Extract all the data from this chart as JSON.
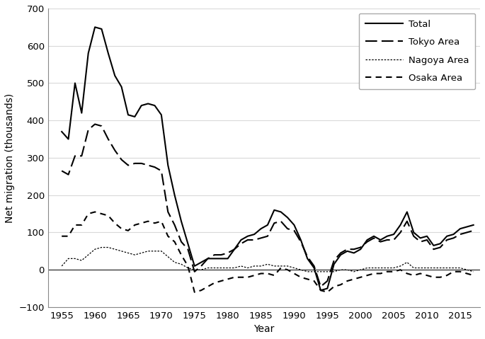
{
  "title": "",
  "xlabel": "Year",
  "ylabel": "Net migration (thousands)",
  "xlim": [
    1953,
    2018
  ],
  "ylim": [
    -100,
    700
  ],
  "yticks": [
    -100,
    0,
    100,
    200,
    300,
    400,
    500,
    600,
    700
  ],
  "xticks": [
    1955,
    1960,
    1965,
    1970,
    1975,
    1980,
    1985,
    1990,
    1995,
    2000,
    2005,
    2010,
    2015
  ],
  "years": [
    1955,
    1956,
    1957,
    1958,
    1959,
    1960,
    1961,
    1962,
    1963,
    1964,
    1965,
    1966,
    1967,
    1968,
    1969,
    1970,
    1971,
    1972,
    1973,
    1974,
    1975,
    1976,
    1977,
    1978,
    1979,
    1980,
    1981,
    1982,
    1983,
    1984,
    1985,
    1986,
    1987,
    1988,
    1989,
    1990,
    1991,
    1992,
    1993,
    1994,
    1995,
    1996,
    1997,
    1998,
    1999,
    2000,
    2001,
    2002,
    2003,
    2004,
    2005,
    2006,
    2007,
    2008,
    2009,
    2010,
    2011,
    2012,
    2013,
    2014,
    2015,
    2016,
    2017
  ],
  "total": [
    370,
    350,
    500,
    420,
    580,
    650,
    645,
    580,
    520,
    490,
    415,
    410,
    440,
    445,
    440,
    415,
    280,
    200,
    130,
    70,
    10,
    20,
    30,
    30,
    30,
    30,
    55,
    80,
    90,
    95,
    110,
    120,
    160,
    155,
    140,
    120,
    80,
    30,
    5,
    -55,
    -50,
    15,
    40,
    50,
    45,
    55,
    80,
    90,
    80,
    90,
    95,
    120,
    155,
    100,
    85,
    90,
    65,
    70,
    90,
    95,
    110,
    115,
    120
  ],
  "tokyo": [
    265,
    255,
    305,
    305,
    375,
    390,
    385,
    350,
    320,
    295,
    280,
    285,
    285,
    280,
    275,
    265,
    155,
    120,
    75,
    55,
    -5,
    10,
    30,
    40,
    40,
    45,
    55,
    70,
    80,
    80,
    85,
    90,
    125,
    130,
    110,
    105,
    75,
    35,
    10,
    -45,
    -30,
    25,
    45,
    55,
    55,
    60,
    75,
    85,
    75,
    80,
    80,
    100,
    130,
    90,
    75,
    80,
    55,
    60,
    80,
    85,
    95,
    100,
    105
  ],
  "nagoya": [
    10,
    30,
    30,
    25,
    40,
    55,
    60,
    60,
    55,
    50,
    45,
    40,
    45,
    50,
    50,
    50,
    35,
    20,
    15,
    5,
    0,
    0,
    5,
    5,
    5,
    5,
    5,
    10,
    5,
    10,
    10,
    15,
    10,
    10,
    10,
    5,
    0,
    -5,
    -5,
    -5,
    -5,
    -5,
    0,
    0,
    -5,
    0,
    5,
    5,
    5,
    5,
    5,
    10,
    20,
    5,
    5,
    5,
    5,
    5,
    5,
    5,
    5,
    0,
    -5
  ],
  "osaka": [
    90,
    90,
    120,
    120,
    150,
    155,
    150,
    145,
    125,
    110,
    105,
    120,
    125,
    130,
    125,
    130,
    90,
    75,
    40,
    10,
    -60,
    -55,
    -45,
    -35,
    -30,
    -25,
    -20,
    -20,
    -20,
    -15,
    -10,
    -10,
    -15,
    5,
    0,
    -10,
    -20,
    -25,
    -30,
    -55,
    -60,
    -45,
    -40,
    -30,
    -25,
    -20,
    -15,
    -10,
    -10,
    -5,
    -5,
    0,
    -10,
    -15,
    -10,
    -15,
    -20,
    -20,
    -15,
    -5,
    -5,
    -10,
    -15
  ],
  "background_color": "#ffffff",
  "grid_color": "#d9d9d9",
  "line_color": "#000000",
  "legend_labels": [
    "Total",
    "Tokyo Area",
    "Nagoya Area",
    "Osaka Area"
  ],
  "figsize": [
    6.85,
    4.79
  ],
  "dpi": 100
}
